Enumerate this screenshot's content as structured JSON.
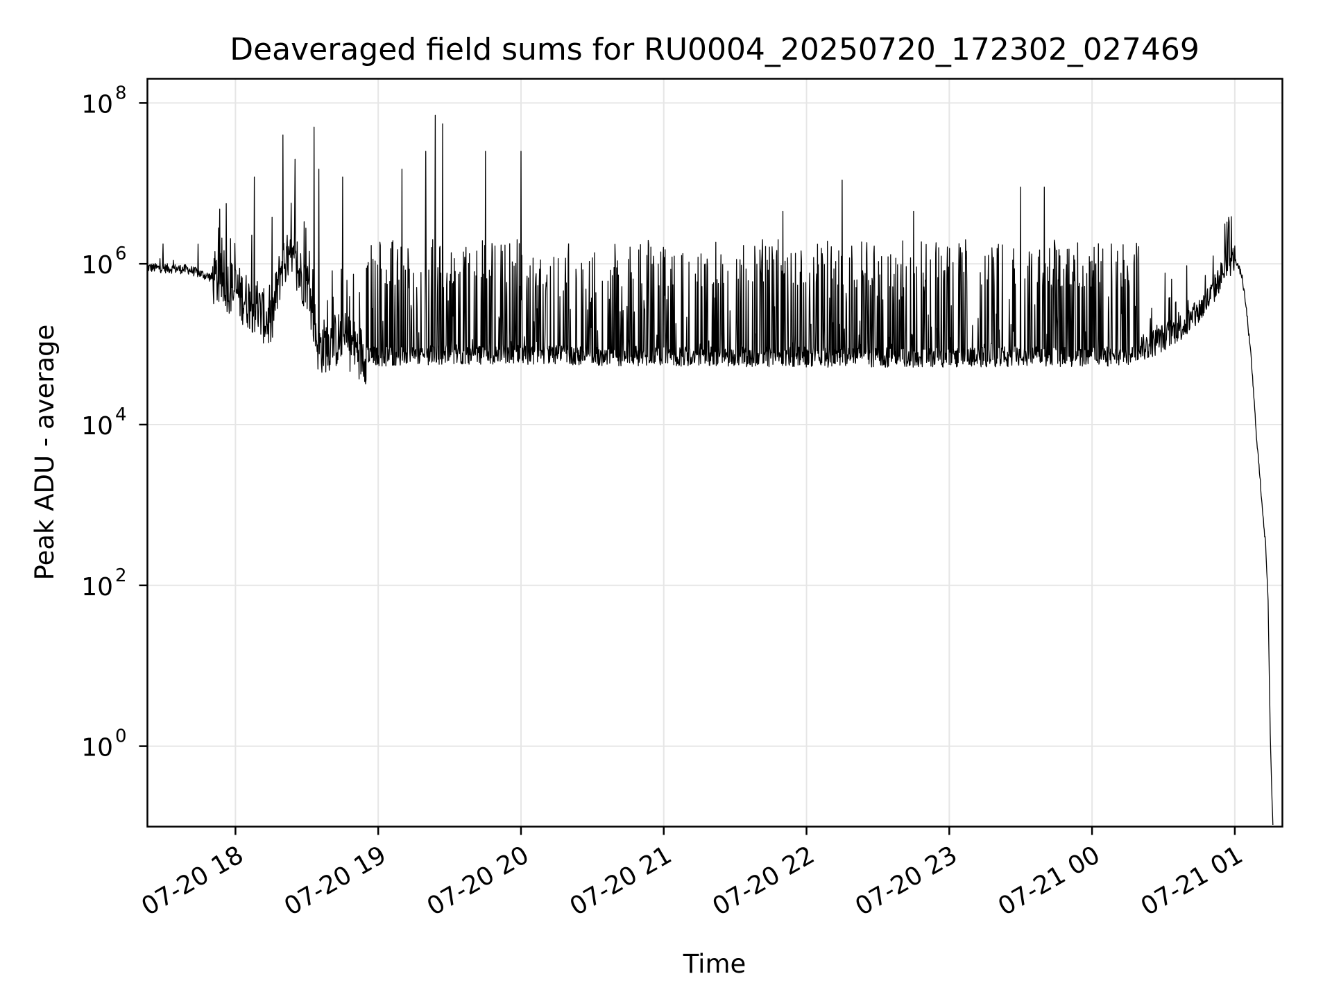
{
  "chart_data": {
    "type": "line",
    "title": "Deaveraged field sums for RU0004_20250720_172302_027469",
    "xlabel": "Time",
    "ylabel": "Peak ADU - average",
    "x_axis": "datetime",
    "y_scale": "log",
    "xlim": [
      "2025-07-20 17:23",
      "2025-07-21 01:20"
    ],
    "ylim": [
      0.1,
      200000000
    ],
    "grid": true,
    "line_color": "#000000",
    "grid_color": "#e6e6e6",
    "x_ticks": [
      {
        "value": "2025-07-20 18:00",
        "label": "07-20 18"
      },
      {
        "value": "2025-07-20 19:00",
        "label": "07-20 19"
      },
      {
        "value": "2025-07-20 20:00",
        "label": "07-20 20"
      },
      {
        "value": "2025-07-20 21:00",
        "label": "07-20 21"
      },
      {
        "value": "2025-07-20 22:00",
        "label": "07-20 22"
      },
      {
        "value": "2025-07-20 23:00",
        "label": "07-20 23"
      },
      {
        "value": "2025-07-21 00:00",
        "label": "07-21 00"
      },
      {
        "value": "2025-07-21 01:00",
        "label": "07-21 01"
      }
    ],
    "y_ticks": [
      {
        "value": 1,
        "base": "10",
        "exp": "0"
      },
      {
        "value": 100,
        "base": "10",
        "exp": "2"
      },
      {
        "value": 10000,
        "base": "10",
        "exp": "4"
      },
      {
        "value": 1000000,
        "base": "10",
        "exp": "6"
      },
      {
        "value": 100000000,
        "base": "10",
        "exp": "8"
      }
    ],
    "series": [
      {
        "name": "",
        "baseline": [
          [
            "2025-07-20 17:23",
            900000
          ],
          [
            "2025-07-20 17:40",
            850000
          ],
          [
            "2025-07-20 17:55",
            600000
          ],
          [
            "2025-07-20 18:05",
            350000
          ],
          [
            "2025-07-20 18:15",
            180000
          ],
          [
            "2025-07-20 18:20",
            1200000
          ],
          [
            "2025-07-20 18:30",
            600000
          ],
          [
            "2025-07-20 18:35",
            90000
          ],
          [
            "2025-07-20 18:45",
            120000
          ],
          [
            "2025-07-20 18:55",
            70000
          ],
          [
            "2025-07-20 19:30",
            75000
          ],
          [
            "2025-07-20 20:30",
            72000
          ],
          [
            "2025-07-20 21:30",
            70000
          ],
          [
            "2025-07-20 22:30",
            68000
          ],
          [
            "2025-07-20 23:30",
            70000
          ],
          [
            "2025-07-21 00:15",
            70000
          ],
          [
            "2025-07-21 00:25",
            100000
          ],
          [
            "2025-07-21 00:35",
            150000
          ],
          [
            "2025-07-21 00:42",
            200000
          ],
          [
            "2025-07-21 00:50",
            400000
          ],
          [
            "2025-07-21 00:55",
            800000
          ],
          [
            "2025-07-21 01:00",
            1200000
          ],
          [
            "2025-07-21 01:03",
            700000
          ],
          [
            "2025-07-21 01:05",
            250000
          ],
          [
            "2025-07-21 01:07",
            60000
          ],
          [
            "2025-07-21 01:09",
            8000
          ],
          [
            "2025-07-21 01:11",
            1500
          ],
          [
            "2025-07-21 01:13",
            300
          ],
          [
            "2025-07-21 01:14",
            60
          ],
          [
            "2025-07-21 01:15",
            1
          ],
          [
            "2025-07-21 01:16",
            0.1
          ]
        ],
        "spikes": [
          [
            "2025-07-20 18:20",
            40000000
          ],
          [
            "2025-07-20 18:25",
            20000000
          ],
          [
            "2025-07-20 18:35",
            15000000
          ],
          [
            "2025-07-20 18:33",
            50000000
          ],
          [
            "2025-07-20 18:08",
            12000000
          ],
          [
            "2025-07-20 18:45",
            12000000
          ],
          [
            "2025-07-20 19:10",
            15000000
          ],
          [
            "2025-07-20 19:20",
            25000000
          ],
          [
            "2025-07-20 19:24",
            70000000
          ],
          [
            "2025-07-20 19:27",
            55000000
          ],
          [
            "2025-07-20 19:45",
            25000000
          ],
          [
            "2025-07-20 20:00",
            25000000
          ],
          [
            "2025-07-20 21:50",
            4500000
          ],
          [
            "2025-07-20 22:15",
            11000000
          ],
          [
            "2025-07-20 22:45",
            4500000
          ],
          [
            "2025-07-20 23:30",
            9000000
          ],
          [
            "2025-07-20 23:40",
            9000000
          ]
        ],
        "burst_peak": 2000000
      }
    ]
  }
}
